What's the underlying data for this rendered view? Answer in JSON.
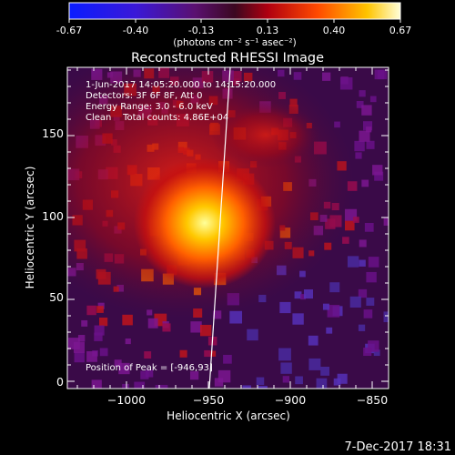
{
  "colorbar": {
    "tick_labels": [
      "-0.67",
      "-0.40",
      "-0.13",
      "0.13",
      "0.40",
      "0.67"
    ],
    "units_line": "(photons cm⁻² s⁻¹ asec⁻²)"
  },
  "image": {
    "title": "Reconstructed RHESSI Image",
    "annotations": [
      "1-Jun-2017 14:05:20.000 to 14:15:20.000",
      "Detectors: 3F 6F 8F, Att 0",
      "Energy Range: 3.0 - 6.0 keV",
      "Clean    Total counts: 4.86E+04"
    ],
    "peak_text": "Position of Peak = [-946,93]"
  },
  "axes": {
    "xlabel": "Heliocentric X (arcsec)",
    "ylabel": "Heliocentric Y (arcsec)",
    "x_ticks": [
      "−1000",
      "−950",
      "−900",
      "−850"
    ],
    "y_ticks": [
      "0",
      "50",
      "100",
      "150"
    ]
  },
  "footer": {
    "timestamp": "7-Dec-2017 18:31"
  },
  "colors": {
    "background": "#000000",
    "limb_line": "#ffffff"
  }
}
